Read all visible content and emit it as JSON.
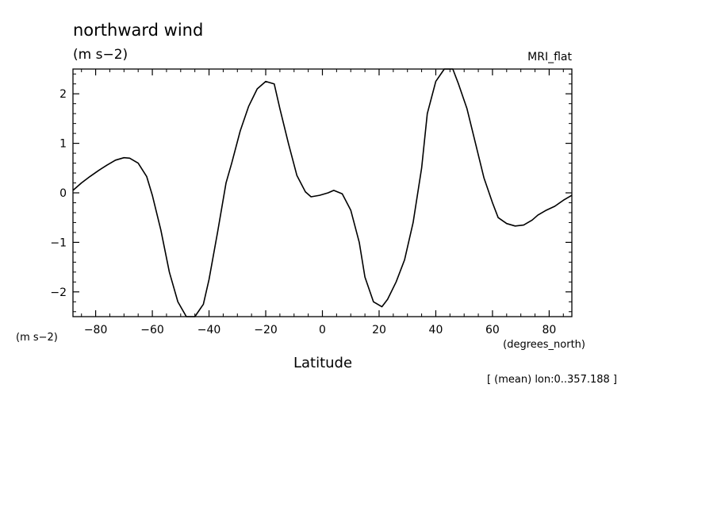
{
  "chart_data": {
    "type": "line",
    "title": "northward wind",
    "units_label": "(m s−2)",
    "model_label": "MRI_flat",
    "ylabel": "(m s−2)",
    "xlabel": "Latitude",
    "xunits": "(degrees_north)",
    "footnote": "[ (mean) lon:0..357.188 ]",
    "xlim": [
      -88,
      88
    ],
    "ylim": [
      -2.5,
      2.5
    ],
    "xticks": [
      -80,
      -60,
      -40,
      -20,
      0,
      20,
      40,
      60,
      80
    ],
    "xtick_labels": [
      "−80",
      "−60",
      "−40",
      "−20",
      "0",
      "20",
      "40",
      "60",
      "80"
    ],
    "yticks": [
      -2,
      -1,
      0,
      1,
      2
    ],
    "ytick_labels": [
      "−2",
      "−1",
      "0",
      "1",
      "2"
    ],
    "grid": false,
    "line_color": "#000000",
    "series": [
      {
        "x": [
          -88,
          -85,
          -82,
          -79,
          -76,
          -73,
          -70,
          -68,
          -65,
          -62,
          -60,
          -57,
          -54,
          -51,
          -48,
          -45,
          -42,
          -40,
          -37,
          -34,
          -32,
          -29,
          -26,
          -23,
          -20,
          -17,
          -15,
          -12,
          -9,
          -6,
          -4,
          -1,
          2,
          4,
          7,
          10,
          13,
          15,
          18,
          21,
          23,
          26,
          29,
          32,
          35,
          37,
          40,
          43,
          46,
          48,
          51,
          54,
          57,
          60,
          62,
          65,
          68,
          71,
          74,
          76,
          79,
          82,
          85,
          88
        ],
        "y": [
          0.05,
          0.2,
          0.33,
          0.45,
          0.56,
          0.66,
          0.71,
          0.7,
          0.6,
          0.33,
          -0.05,
          -0.75,
          -1.6,
          -2.2,
          -2.5,
          -2.5,
          -2.25,
          -1.75,
          -0.8,
          0.2,
          0.6,
          1.25,
          1.75,
          2.1,
          2.25,
          2.2,
          1.7,
          1.0,
          0.35,
          0.02,
          -0.08,
          -0.05,
          0.0,
          0.05,
          -0.02,
          -0.35,
          -1.0,
          -1.7,
          -2.2,
          -2.3,
          -2.15,
          -1.8,
          -1.35,
          -0.6,
          0.5,
          1.6,
          2.25,
          2.5,
          2.5,
          2.2,
          1.7,
          1.0,
          0.3,
          -0.2,
          -0.5,
          -0.62,
          -0.67,
          -0.65,
          -0.55,
          -0.45,
          -0.35,
          -0.27,
          -0.15,
          -0.05
        ]
      }
    ]
  }
}
